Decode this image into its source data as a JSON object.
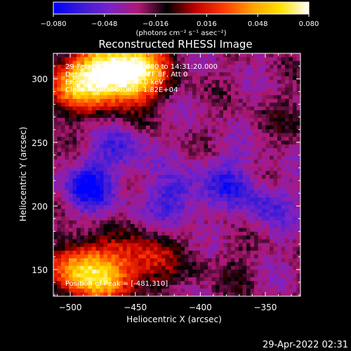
{
  "chart_data": {
    "type": "heatmap",
    "title": "Reconstructed RHESSI Image",
    "xlabel": "Heliocentric X (arcsec)",
    "ylabel": "Heliocentric Y (arcsec)",
    "xlim": [
      -513,
      -323
    ],
    "ylim": [
      129,
      320
    ],
    "x_ticks": [
      -500,
      -450,
      -400,
      -350
    ],
    "x_tick_labels": [
      "−500",
      "−450",
      "−400",
      "−350"
    ],
    "y_ticks": [
      150,
      200,
      250,
      300
    ],
    "y_tick_labels": [
      "150",
      "200",
      "250",
      "300"
    ],
    "colorbar": {
      "range": [
        -0.08,
        0.08
      ],
      "ticks": [
        -0.08,
        -0.048,
        -0.016,
        0.016,
        0.048,
        0.08
      ],
      "tick_labels": [
        "−0.080",
        "−0.048",
        "−0.016",
        "0.016",
        "0.048",
        "0.080"
      ],
      "unit_label": "(photons cm⁻² s⁻¹ asec⁻²)",
      "stops": [
        "#0000ff",
        "#3c1bd6",
        "#7a22c8",
        "#b01872",
        "#000000",
        "#c00000",
        "#ff3a00",
        "#ffa000",
        "#ffe200",
        "#ffffff"
      ]
    },
    "annotations": [
      "29-Feb-2004 14:28:00.000 to 14:31:20.000",
      "Detectors: 3F 4F 5F 6F 7F 8F, Att 0",
      "Energy Range: 3.0 - 6.0 keV",
      "Clean     Total counts: 1.82E+04"
    ],
    "peak_text": "Position of Peak = [-481,310]",
    "bright_regions": [
      {
        "x": -475,
        "y": 305,
        "value": 0.075
      },
      {
        "x": -500,
        "y": 295,
        "value": 0.06
      },
      {
        "x": -455,
        "y": 300,
        "value": 0.06
      },
      {
        "x": -445,
        "y": 310,
        "value": 0.05
      },
      {
        "x": -495,
        "y": 150,
        "value": 0.07
      },
      {
        "x": -470,
        "y": 145,
        "value": 0.055
      },
      {
        "x": -440,
        "y": 158,
        "value": 0.04
      },
      {
        "x": -380,
        "y": 150,
        "value": 0.012
      },
      {
        "x": -335,
        "y": 270,
        "value": 0.01
      }
    ],
    "dark_regions": [
      {
        "x": -485,
        "y": 215,
        "value": -0.075
      },
      {
        "x": -420,
        "y": 205,
        "value": -0.065
      },
      {
        "x": -380,
        "y": 220,
        "value": -0.06
      },
      {
        "x": -460,
        "y": 245,
        "value": -0.055
      },
      {
        "x": -350,
        "y": 200,
        "value": -0.055
      }
    ]
  },
  "footer_timestamp": "29-Apr-2022 02:31"
}
